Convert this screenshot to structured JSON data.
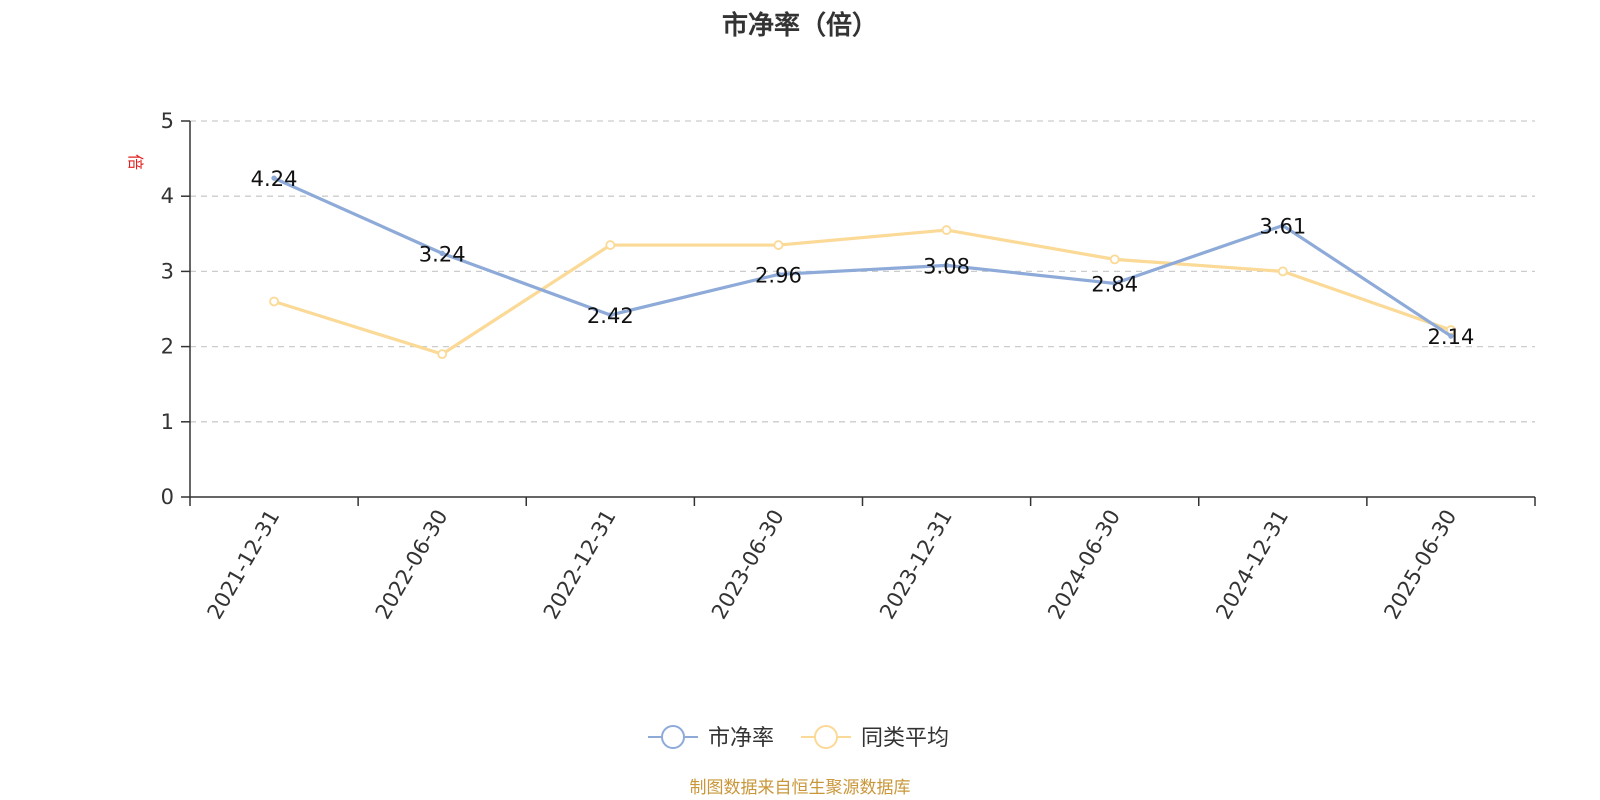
{
  "chart_data": {
    "type": "line",
    "title": "市净率（倍）",
    "ylabel": "倍",
    "xlabel": "",
    "categories": [
      "2021-12-31",
      "2022-06-30",
      "2022-12-31",
      "2023-06-30",
      "2023-12-31",
      "2024-06-30",
      "2024-12-31",
      "2025-06-30"
    ],
    "ylim": [
      0,
      5
    ],
    "yticks": [
      0,
      1,
      2,
      3,
      4,
      5
    ],
    "grid": true,
    "legend_position": "bottom-center",
    "series": [
      {
        "name": "市净率",
        "color": "#8eaad8",
        "values": [
          4.24,
          3.24,
          2.42,
          2.96,
          3.08,
          2.84,
          3.61,
          2.14
        ],
        "data_labels": [
          "4.24",
          "3.24",
          "2.42",
          "2.96",
          "3.08",
          "2.84",
          "3.61",
          "2.14"
        ]
      },
      {
        "name": "同类平均",
        "color": "#fbd996",
        "values": [
          2.6,
          1.9,
          3.35,
          3.35,
          3.55,
          3.16,
          3.0,
          2.22
        ]
      }
    ],
    "source_note": "制图数据来自恒生聚源数据库",
    "colors": {
      "ylabel": "#e02020",
      "source": "#c9973a",
      "axis": "#333333",
      "grid": "#cccccc"
    }
  }
}
